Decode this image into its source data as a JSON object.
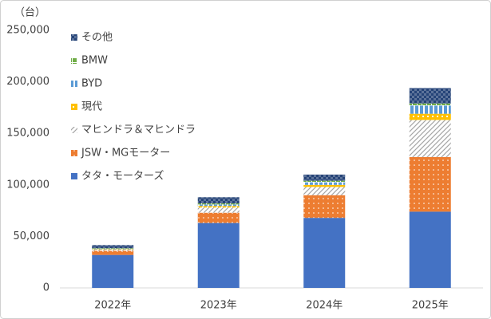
{
  "chart_data": {
    "type": "stacked-bar",
    "y_unit": "（台）",
    "categories": [
      "2022年",
      "2023年",
      "2024年",
      "2025年"
    ],
    "series": [
      {
        "name": "タタ・モーターズ",
        "color": "#4472c4",
        "values": [
          32000,
          63000,
          68000,
          74000
        ]
      },
      {
        "name": "JSW・MGモーター",
        "color": "#ed7d31",
        "values": [
          4000,
          10000,
          22000,
          53000
        ]
      },
      {
        "name": "マヒンドラ＆マヒンドラ",
        "color": "#a5a5a5",
        "values": [
          1000,
          5000,
          8000,
          36000
        ]
      },
      {
        "name": "現代",
        "color": "#ffc000",
        "values": [
          500,
          1500,
          2000,
          6000
        ]
      },
      {
        "name": "BYD",
        "color": "#5b9bd5",
        "values": [
          500,
          1500,
          2500,
          8000
        ]
      },
      {
        "name": "BMW",
        "color": "#70ad47",
        "values": [
          500,
          1000,
          1500,
          2000
        ]
      },
      {
        "name": "その他",
        "color": "#264478",
        "values": [
          3000,
          6000,
          6000,
          15000
        ]
      }
    ],
    "ylim": [
      0,
      250000
    ],
    "yticks": [
      0,
      {
        "value": 50000,
        "label": "50,000"
      },
      {
        "value": 100000,
        "label": "100,000"
      },
      {
        "value": 150000,
        "label": "150,000"
      },
      {
        "value": 200000,
        "label": "200,000"
      },
      {
        "value": 250000,
        "label": "250,000"
      }
    ],
    "grid": false
  }
}
